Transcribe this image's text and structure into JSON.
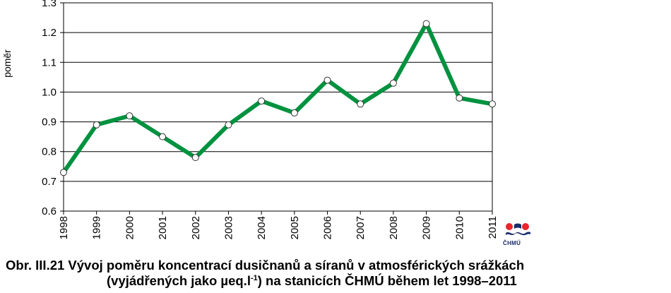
{
  "chart_data": {
    "type": "line",
    "x": [
      "1998",
      "1999",
      "2000",
      "2001",
      "2002",
      "2003",
      "2004",
      "2005",
      "2006",
      "2007",
      "2008",
      "2009",
      "2010",
      "2011"
    ],
    "series": [
      {
        "values": [
          0.73,
          0.89,
          0.92,
          0.85,
          0.78,
          0.89,
          0.97,
          0.93,
          1.04,
          0.96,
          1.03,
          1.23,
          0.98,
          0.96
        ]
      }
    ],
    "ylabel": "poměr",
    "xlabel": "",
    "title": "",
    "ylim": [
      0.6,
      1.3
    ],
    "yticks": [
      "0.6",
      "0.7",
      "0.8",
      "0.9",
      "1.0",
      "1.1",
      "1.2",
      "1.3"
    ],
    "grid": "horizontal",
    "line_color": "#00923f",
    "marker": "white-circle"
  },
  "logo": {
    "text": "ČHMÚ",
    "colors": [
      "#e8262b",
      "#1a2a6c"
    ]
  },
  "caption": {
    "line1": "Obr. III.21  Vývoj poměru koncentrací dusičnanů a síranů v atmosférických srážkách",
    "line2_pre": "(vyjádřených jako µeq.l",
    "line2_sup": "-1",
    "line2_post": ") na stanicích ČHMÚ během let 1998–2011"
  }
}
